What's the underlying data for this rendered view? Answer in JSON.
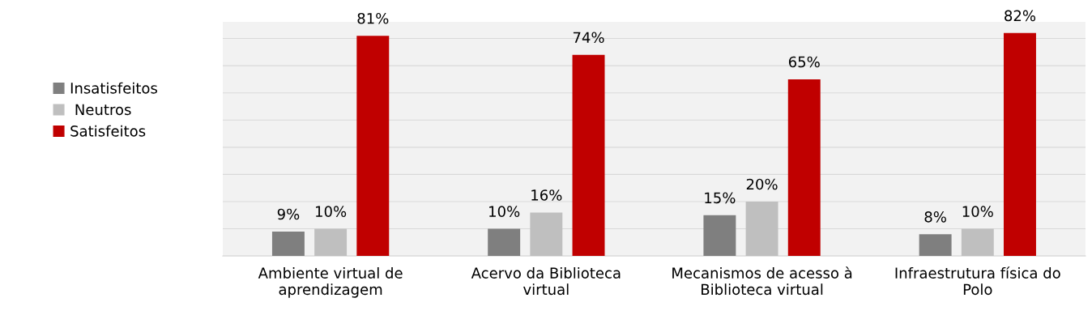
{
  "chart_data": {
    "type": "bar",
    "categories": [
      "Ambiente virtual de\naprendizagem",
      "Acervo da Biblioteca\nvirtual",
      "Mecanismos de acesso à\nBiblioteca virtual",
      "Infraestrutura física do\nPolo"
    ],
    "series": [
      {
        "name": "Insatisfeitos",
        "color": "#7f7f7f",
        "values": [
          9,
          10,
          15,
          8
        ],
        "value_labels": [
          "9%",
          "10%",
          "15%",
          "8%"
        ]
      },
      {
        "name": " Neutros",
        "color": "#bfbfbf",
        "values": [
          10,
          16,
          20,
          10
        ],
        "value_labels": [
          "10%",
          "16%",
          "20%",
          "10%"
        ]
      },
      {
        "name": "Satisfeitos",
        "color": "#c00000",
        "values": [
          81,
          74,
          65,
          82
        ],
        "value_labels": [
          "81%",
          "74%",
          "65%",
          "82%"
        ]
      }
    ],
    "grid": "y",
    "legend": "left",
    "tick_labels": "x"
  }
}
